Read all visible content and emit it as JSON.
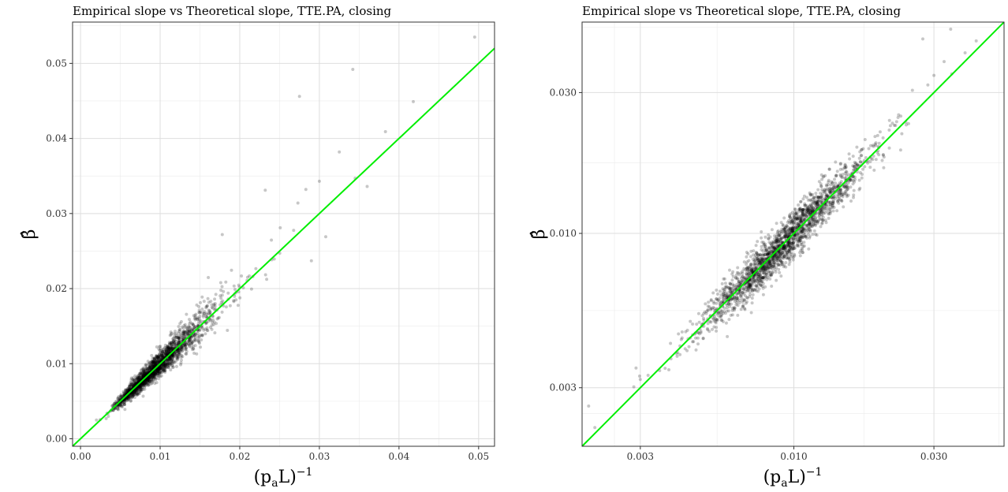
{
  "chart_data": [
    {
      "type": "scatter",
      "title": "Empirical slope vs Theoretical slope, TTE.PA, closing",
      "xlabel": "(p_aL)^-1",
      "ylabel": "β̂",
      "xlim": [
        -0.001,
        0.052
      ],
      "ylim": [
        -0.001,
        0.0555
      ],
      "x_scale": "linear",
      "y_scale": "linear",
      "xticks": [
        0.0,
        0.01,
        0.02,
        0.03,
        0.04,
        0.05
      ],
      "xtick_labels": [
        "0.00",
        "0.01",
        "0.02",
        "0.03",
        "0.04",
        "0.05"
      ],
      "yticks": [
        0.0,
        0.01,
        0.02,
        0.03,
        0.04,
        0.05
      ],
      "ytick_labels": [
        "0.00",
        "0.01",
        "0.02",
        "0.03",
        "0.04",
        "0.05"
      ],
      "grid": true,
      "reference_line": {
        "slope": 1,
        "intercept": 0,
        "color": "#00ee00"
      },
      "point_color": "#000000",
      "n_points_approx": 2000,
      "outliers": [
        {
          "x": 0.0495,
          "y": 0.0535
        },
        {
          "x": 0.0342,
          "y": 0.0492
        },
        {
          "x": 0.0275,
          "y": 0.0456
        },
        {
          "x": 0.0418,
          "y": 0.0449
        },
        {
          "x": 0.0383,
          "y": 0.0409
        },
        {
          "x": 0.0325,
          "y": 0.0382
        },
        {
          "x": 0.0345,
          "y": 0.0347
        },
        {
          "x": 0.036,
          "y": 0.0336
        },
        {
          "x": 0.03,
          "y": 0.0343
        },
        {
          "x": 0.0232,
          "y": 0.0331
        },
        {
          "x": 0.0308,
          "y": 0.0269
        },
        {
          "x": 0.029,
          "y": 0.0237
        },
        {
          "x": 0.0178,
          "y": 0.0272
        },
        {
          "x": 0.0273,
          "y": 0.0314
        },
        {
          "x": 0.0283,
          "y": 0.0332
        },
        {
          "x": 0.002,
          "y": 0.0025
        }
      ]
    },
    {
      "type": "scatter",
      "title": "Empirical slope vs Theoretical slope, TTE.PA, closing",
      "xlabel": "(p_aL)^-1",
      "ylabel": "β̂",
      "xlim": [
        0.0019,
        0.052
      ],
      "ylim": [
        0.0019,
        0.052
      ],
      "x_scale": "log",
      "y_scale": "log",
      "xticks": [
        0.003,
        0.01,
        0.03
      ],
      "xtick_labels": [
        "0.003",
        "0.010",
        "0.030"
      ],
      "yticks": [
        0.003,
        0.01,
        0.03
      ],
      "ytick_labels": [
        "0.003",
        "0.010",
        "0.030"
      ],
      "grid": true,
      "reference_line": {
        "slope": 1,
        "intercept": 0,
        "color": "#00ee00"
      },
      "point_color": "#000000",
      "n_points_approx": 2000,
      "outliers": [
        {
          "x": 0.002,
          "y": 0.0026
        },
        {
          "x": 0.0021,
          "y": 0.0022
        },
        {
          "x": 0.0029,
          "y": 0.0035
        },
        {
          "x": 0.003,
          "y": 0.0032
        },
        {
          "x": 0.0495,
          "y": 0.0535
        },
        {
          "x": 0.0342,
          "y": 0.0492
        },
        {
          "x": 0.0275,
          "y": 0.0456
        },
        {
          "x": 0.0418,
          "y": 0.0449
        },
        {
          "x": 0.0383,
          "y": 0.0409
        },
        {
          "x": 0.0325,
          "y": 0.0382
        },
        {
          "x": 0.03,
          "y": 0.0343
        },
        {
          "x": 0.0345,
          "y": 0.0347
        }
      ]
    }
  ]
}
